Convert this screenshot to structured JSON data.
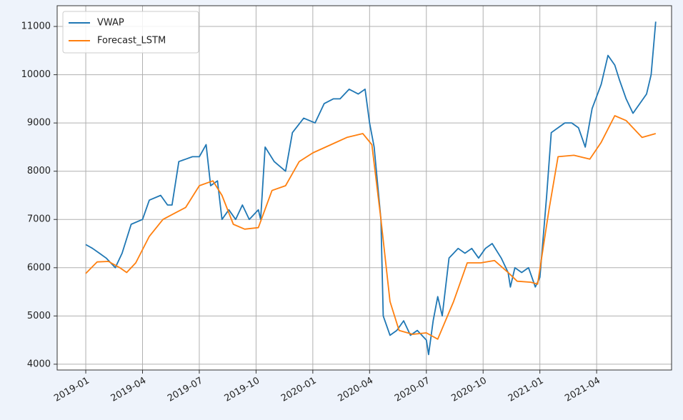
{
  "chart_data": {
    "type": "line",
    "legend": "upper left",
    "grid": true,
    "xlim": [
      2018.874,
      2021.58
    ],
    "xticks": [
      {
        "value": 2019.0,
        "label": "2019-01"
      },
      {
        "value": 2019.25,
        "label": "2019-04"
      },
      {
        "value": 2019.5,
        "label": "2019-07"
      },
      {
        "value": 2019.75,
        "label": "2019-10"
      },
      {
        "value": 2020.0,
        "label": "2020-01"
      },
      {
        "value": 2020.25,
        "label": "2020-04"
      },
      {
        "value": 2020.5,
        "label": "2020-07"
      },
      {
        "value": 2020.75,
        "label": "2020-10"
      },
      {
        "value": 2021.0,
        "label": "2021-01"
      },
      {
        "value": 2021.25,
        "label": "2021-04"
      }
    ],
    "ylim": [
      3880,
      11430
    ],
    "yticks": [
      4000,
      5000,
      6000,
      7000,
      8000,
      9000,
      10000,
      11000
    ],
    "series": [
      {
        "name": "VWAP",
        "color": "#1f77b4",
        "x": [
          2019.0,
          2019.03,
          2019.06,
          2019.09,
          2019.12,
          2019.13,
          2019.16,
          2019.2,
          2019.25,
          2019.28,
          2019.33,
          2019.36,
          2019.38,
          2019.41,
          2019.44,
          2019.47,
          2019.5,
          2019.53,
          2019.55,
          2019.58,
          2019.6,
          2019.63,
          2019.66,
          2019.69,
          2019.72,
          2019.76,
          2019.77,
          2019.79,
          2019.83,
          2019.88,
          2019.91,
          2019.96,
          2020.01,
          2020.05,
          2020.09,
          2020.12,
          2020.16,
          2020.2,
          2020.23,
          2020.25,
          2020.27,
          2020.3,
          2020.31,
          2020.34,
          2020.37,
          2020.4,
          2020.43,
          2020.46,
          2020.5,
          2020.51,
          2020.53,
          2020.55,
          2020.57,
          2020.6,
          2020.64,
          2020.67,
          2020.7,
          2020.73,
          2020.76,
          2020.79,
          2020.83,
          2020.86,
          2020.87,
          2020.89,
          2020.92,
          2020.95,
          2020.98,
          2021.0,
          2021.03,
          2021.05,
          2021.08,
          2021.11,
          2021.14,
          2021.17,
          2021.2,
          2021.23,
          2021.27,
          2021.3,
          2021.33,
          2021.35,
          2021.38,
          2021.41,
          2021.44,
          2021.47,
          2021.49,
          2021.51
        ],
        "values": [
          6480,
          6400,
          6300,
          6200,
          6050,
          6000,
          6300,
          6900,
          7000,
          7400,
          7500,
          7300,
          7300,
          8200,
          8250,
          8300,
          8300,
          8550,
          7700,
          7800,
          7000,
          7200,
          7000,
          7300,
          7000,
          7200,
          7000,
          8500,
          8200,
          8000,
          8800,
          9100,
          9000,
          9400,
          9500,
          9500,
          9700,
          9600,
          9700,
          9000,
          8500,
          7000,
          5000,
          4600,
          4700,
          4900,
          4600,
          4700,
          4500,
          4200,
          4900,
          5400,
          5000,
          6200,
          6400,
          6300,
          6400,
          6200,
          6400,
          6500,
          6200,
          5900,
          5600,
          6000,
          5900,
          6000,
          5600,
          5800,
          7500,
          8800,
          8900,
          9000,
          9000,
          8900,
          8500,
          9300,
          9800,
          10400,
          10200,
          9900,
          9500,
          9200,
          9400,
          9600,
          10000,
          11100
        ]
      },
      {
        "name": "Forecast_LSTM",
        "color": "#ff7f0e",
        "x": [
          2019.0,
          2019.05,
          2019.1,
          2019.15,
          2019.18,
          2019.22,
          2019.28,
          2019.34,
          2019.4,
          2019.44,
          2019.5,
          2019.56,
          2019.6,
          2019.65,
          2019.7,
          2019.76,
          2019.82,
          2019.88,
          2019.94,
          2020.0,
          2020.08,
          2020.15,
          2020.22,
          2020.26,
          2020.3,
          2020.34,
          2020.38,
          2020.44,
          2020.5,
          2020.55,
          2020.62,
          2020.68,
          2020.74,
          2020.8,
          2020.86,
          2020.9,
          2020.96,
          2020.99,
          2021.04,
          2021.08,
          2021.15,
          2021.22,
          2021.27,
          2021.33,
          2021.38,
          2021.45,
          2021.51
        ],
        "values": [
          5880,
          6120,
          6130,
          6000,
          5900,
          6100,
          6650,
          7000,
          7150,
          7250,
          7700,
          7800,
          7500,
          6900,
          6800,
          6830,
          7600,
          7700,
          8200,
          8380,
          8550,
          8700,
          8780,
          8550,
          7000,
          5300,
          4700,
          4620,
          4650,
          4520,
          5300,
          6100,
          6100,
          6150,
          5900,
          5720,
          5700,
          5660,
          7200,
          8300,
          8330,
          8250,
          8600,
          9150,
          9050,
          8700,
          8780
        ]
      }
    ]
  }
}
